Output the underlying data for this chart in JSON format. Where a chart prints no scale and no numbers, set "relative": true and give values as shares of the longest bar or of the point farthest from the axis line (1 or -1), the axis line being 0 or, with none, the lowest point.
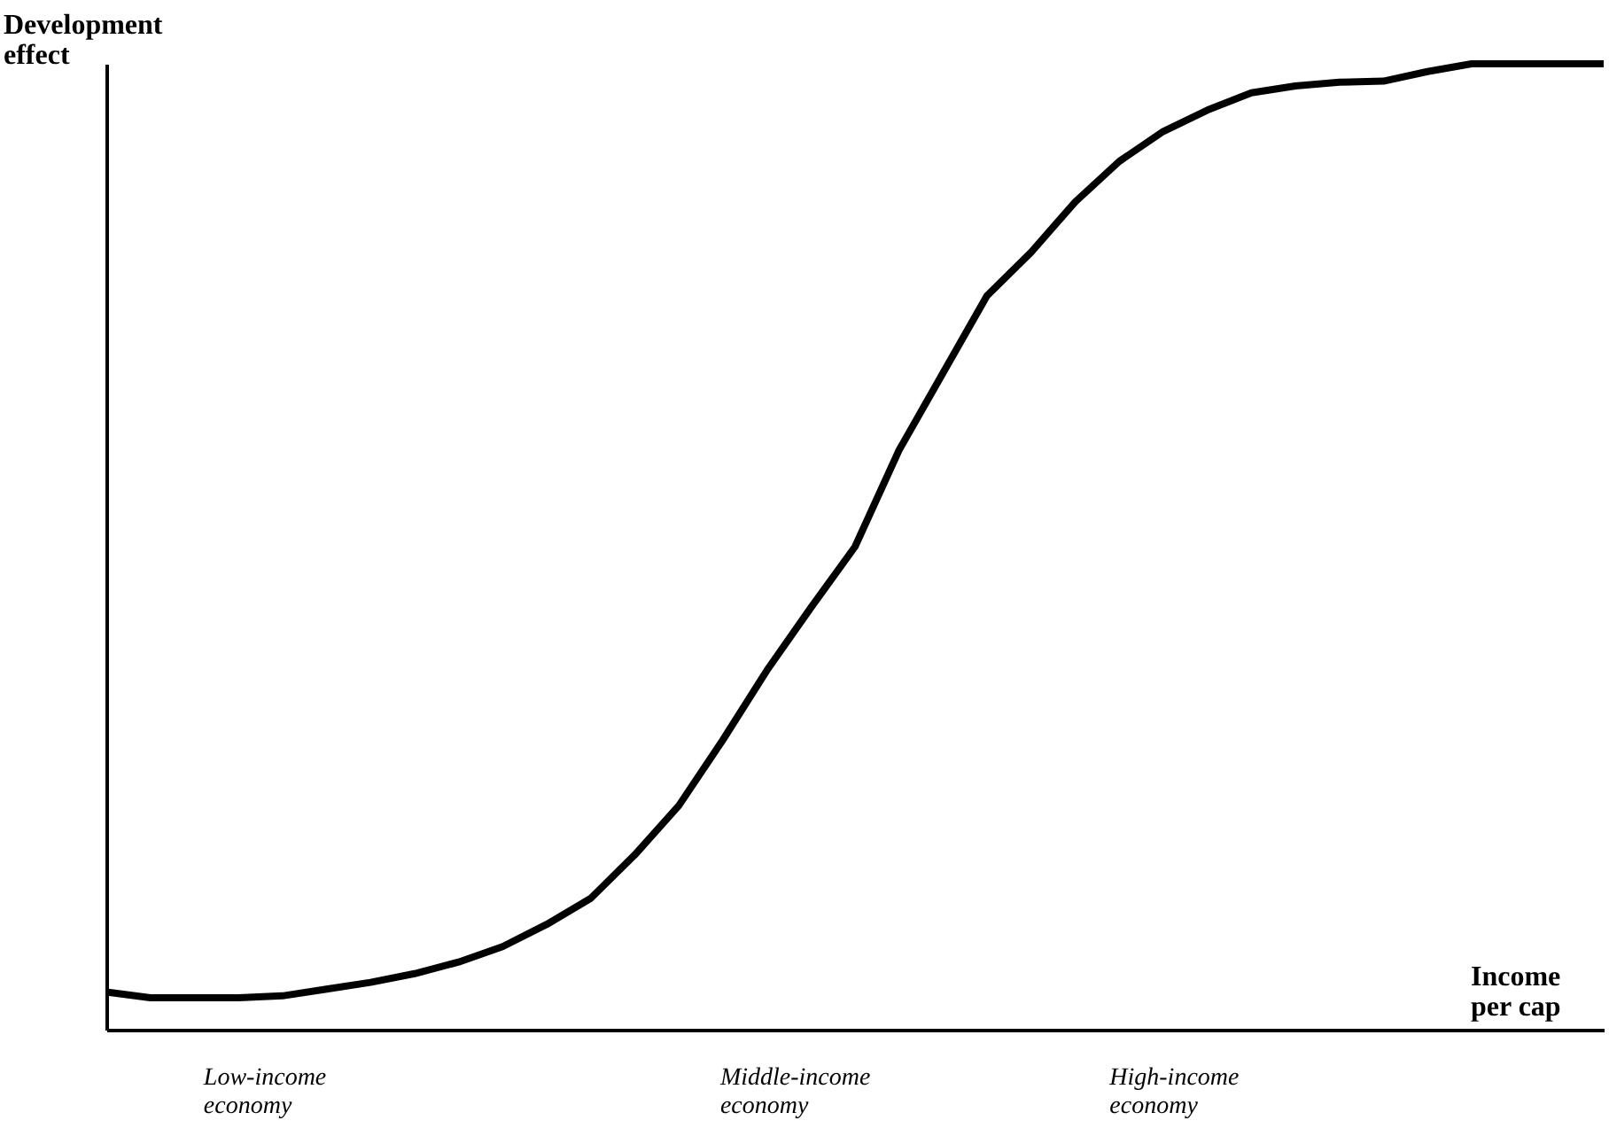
{
  "chart_data": {
    "type": "line",
    "relative": true,
    "xlabel": "Income per cap",
    "ylabel": "Development effect",
    "annotations": [
      "Low-income economy",
      "Middle-income economy",
      "High-income economy"
    ],
    "categories": [
      null,
      null,
      null,
      null,
      null,
      null,
      null,
      null,
      null,
      null,
      null,
      null,
      null,
      null,
      null,
      null,
      null,
      null,
      null,
      null,
      null,
      null,
      null,
      null,
      null,
      null,
      null,
      null,
      null,
      null,
      null,
      null,
      null,
      null,
      null
    ],
    "series": [
      {
        "color": "#000000",
        "values": [
          0.039,
          0.033,
          0.033,
          0.033,
          0.035,
          0.042,
          0.049,
          0.058,
          0.07,
          0.086,
          0.109,
          0.136,
          0.181,
          0.232,
          0.3,
          0.372,
          0.437,
          0.5,
          0.6,
          0.68,
          0.76,
          0.805,
          0.857,
          0.899,
          0.93,
          0.952,
          0.97,
          0.977,
          0.981,
          0.982,
          0.992,
          1,
          1,
          1,
          1
        ]
      }
    ],
    "marker": "none",
    "line_style": "solid"
  }
}
